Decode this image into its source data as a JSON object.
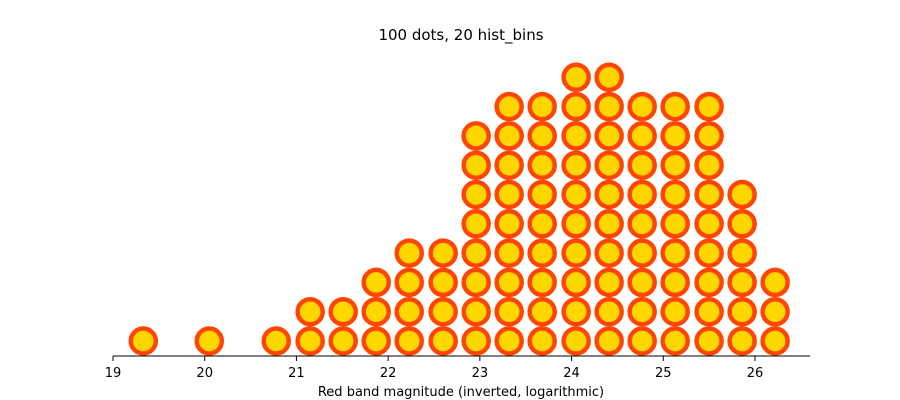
{
  "chart_data": {
    "type": "dot-histogram",
    "title": "100 dots, 20 hist_bins",
    "xlabel": "Red band magnitude (inverted, logarithmic)",
    "ylabel": "",
    "xlim": [
      19,
      26.6
    ],
    "x_ticks": [
      "19",
      "20",
      "21",
      "22",
      "23",
      "24",
      "25",
      "26"
    ],
    "x_tick_values": [
      19,
      20,
      21,
      22,
      23,
      24,
      25,
      26
    ],
    "y_axis_visible": false,
    "grid": false,
    "legend": "none",
    "dot_fill_color": "#ffd700",
    "dot_edge_color": "#ff4500",
    "bin_centers": [
      19.33,
      20.05,
      20.78,
      21.15,
      21.51,
      21.87,
      22.23,
      22.6,
      22.96,
      23.32,
      23.68,
      24.05,
      24.41,
      24.77,
      25.13,
      25.5,
      25.86,
      26.22
    ],
    "counts": [
      1,
      1,
      1,
      2,
      2,
      3,
      4,
      4,
      8,
      9,
      9,
      10,
      10,
      9,
      9,
      9,
      6,
      3
    ]
  }
}
